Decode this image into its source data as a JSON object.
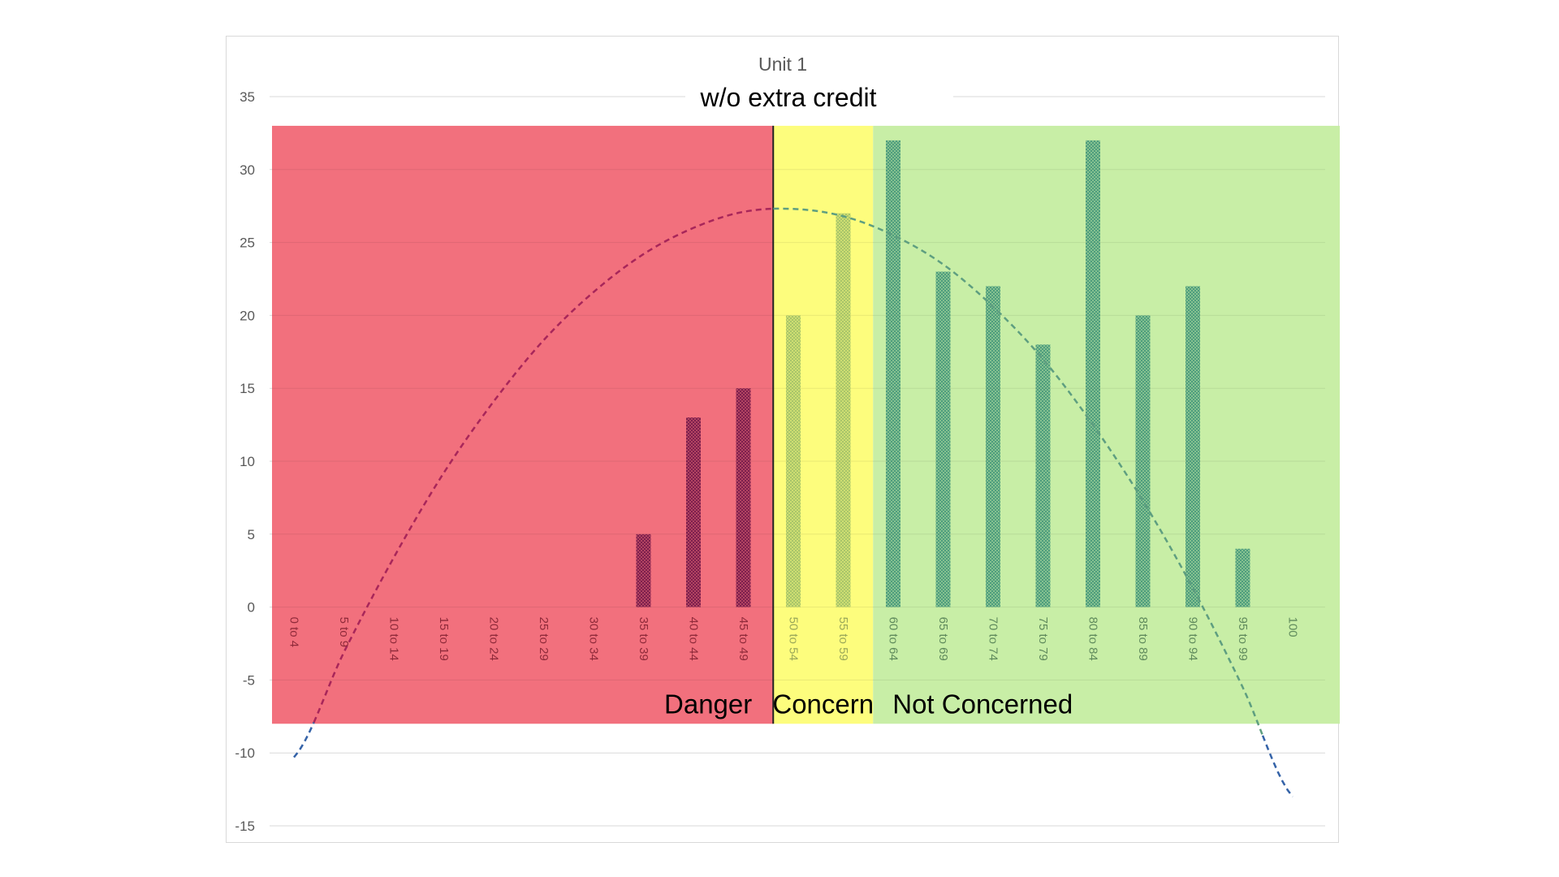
{
  "chart_data": {
    "type": "bar",
    "title": "Unit 1",
    "subtitle": "w/o extra credit",
    "categories": [
      "0 to 4",
      "5 to 9",
      "10 to 14",
      "15 to 19",
      "20 to 24",
      "25 to 29",
      "30 to 34",
      "35 to 39",
      "40 to 44",
      "45 to 49",
      "50 to 54",
      "55 to 59",
      "60 to 64",
      "65 to 69",
      "70 to 74",
      "75 to 79",
      "80 to 84",
      "85 to 89",
      "90 to 94",
      "95 to 99",
      "100"
    ],
    "values": [
      0,
      0,
      0,
      0,
      0,
      0,
      0,
      5,
      13,
      15,
      20,
      27,
      32,
      23,
      22,
      18,
      32,
      20,
      22,
      4,
      0
    ],
    "ylim": [
      -15,
      35
    ],
    "yticks": [
      35,
      30,
      25,
      20,
      15,
      10,
      5,
      0,
      -5,
      -10,
      -15
    ],
    "grid": true,
    "trendline": {
      "type": "polynomial",
      "style": "dashed",
      "values": [
        -10.3,
        -3.1,
        3.4,
        9.2,
        14.1,
        18.3,
        21.6,
        24.2,
        26,
        27.1,
        27.3,
        26.8,
        25.5,
        23.5,
        20.6,
        17,
        12.5,
        7.3,
        1.3,
        -5.5,
        -13
      ]
    },
    "zones": [
      {
        "label": "Danger",
        "from_category": 0,
        "to_category": 9,
        "color": "#f2707d",
        "ymin": -8,
        "ymax": 33
      },
      {
        "label": "Concern",
        "from_category": 10,
        "to_category": 11,
        "color": "#fdfd7d",
        "ymin": -8,
        "ymax": 33
      },
      {
        "label": "Not Concerned",
        "from_category": 12,
        "to_category": 20,
        "color": "#c8eea6",
        "ymin": -8,
        "ymax": 33
      }
    ],
    "colors": {
      "bar_danger": "#7d1f4d",
      "bar_concern": "#a8c56a",
      "bar_ok": "#4e9d7d",
      "trend_danger": "#a8265a",
      "trend_ok": "#5e9e80",
      "trend_low": "#3563a8",
      "divider": "#222222"
    }
  }
}
